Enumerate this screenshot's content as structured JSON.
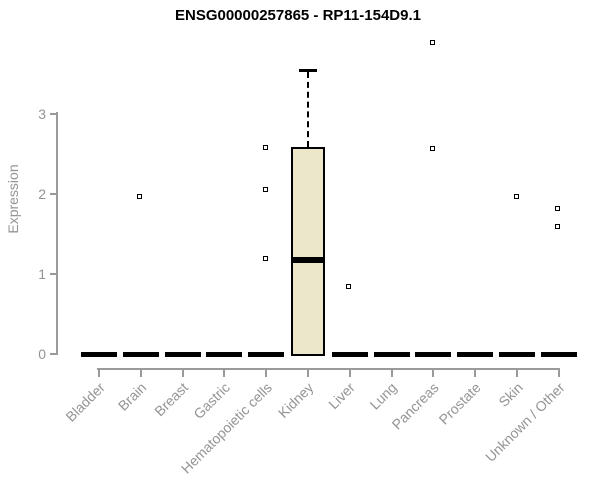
{
  "chart_data": {
    "type": "boxplot",
    "title": "ENSG00000257865 - RP11-154D9.1",
    "ylabel": "Expression",
    "xlabel": "",
    "ylim": [
      0,
      3.9
    ],
    "yticks": [
      "0",
      "1",
      "2",
      "3"
    ],
    "grid": false,
    "legend": "none",
    "colors": {
      "box_fill": "#ece7cb",
      "box_border": "#000000",
      "axis": "#9a9a9a",
      "label_text": "#949494",
      "title_text": "#000000"
    },
    "categories": [
      {
        "label": "Bladder",
        "median": 0,
        "q1": 0,
        "q3": 0,
        "whisker_low": 0,
        "whisker_high": 0,
        "outliers": []
      },
      {
        "label": "Brain",
        "median": 0,
        "q1": 0,
        "q3": 0,
        "whisker_low": 0,
        "whisker_high": 0,
        "outliers": [
          1.97
        ]
      },
      {
        "label": "Breast",
        "median": 0,
        "q1": 0,
        "q3": 0,
        "whisker_low": 0,
        "whisker_high": 0,
        "outliers": []
      },
      {
        "label": "Gastric",
        "median": 0,
        "q1": 0,
        "q3": 0,
        "whisker_low": 0,
        "whisker_high": 0,
        "outliers": []
      },
      {
        "label": "Hematopoietic cells",
        "median": 0,
        "q1": 0,
        "q3": 0,
        "whisker_low": 0,
        "whisker_high": 0,
        "outliers": [
          2.58,
          2.06,
          1.2
        ]
      },
      {
        "label": "Kidney",
        "median": 1.17,
        "q1": 0,
        "q3": 2.57,
        "whisker_low": 0,
        "whisker_high": 3.55,
        "outliers": []
      },
      {
        "label": "Liver",
        "median": 0,
        "q1": 0,
        "q3": 0,
        "whisker_low": 0,
        "whisker_high": 0,
        "outliers": [
          0.85
        ]
      },
      {
        "label": "Lung",
        "median": 0,
        "q1": 0,
        "q3": 0,
        "whisker_low": 0,
        "whisker_high": 0,
        "outliers": []
      },
      {
        "label": "Pancreas",
        "median": 0,
        "q1": 0,
        "q3": 0,
        "whisker_low": 0,
        "whisker_high": 0,
        "outliers": [
          3.9,
          2.57
        ]
      },
      {
        "label": "Prostate",
        "median": 0,
        "q1": 0,
        "q3": 0,
        "whisker_low": 0,
        "whisker_high": 0,
        "outliers": []
      },
      {
        "label": "Skin",
        "median": 0,
        "q1": 0,
        "q3": 0,
        "whisker_low": 0,
        "whisker_high": 0,
        "outliers": [
          1.97
        ]
      },
      {
        "label": "Unknown / Other",
        "median": 0,
        "q1": 0,
        "q3": 0,
        "whisker_low": 0,
        "whisker_high": 0,
        "outliers": [
          1.82,
          1.6
        ]
      }
    ]
  }
}
